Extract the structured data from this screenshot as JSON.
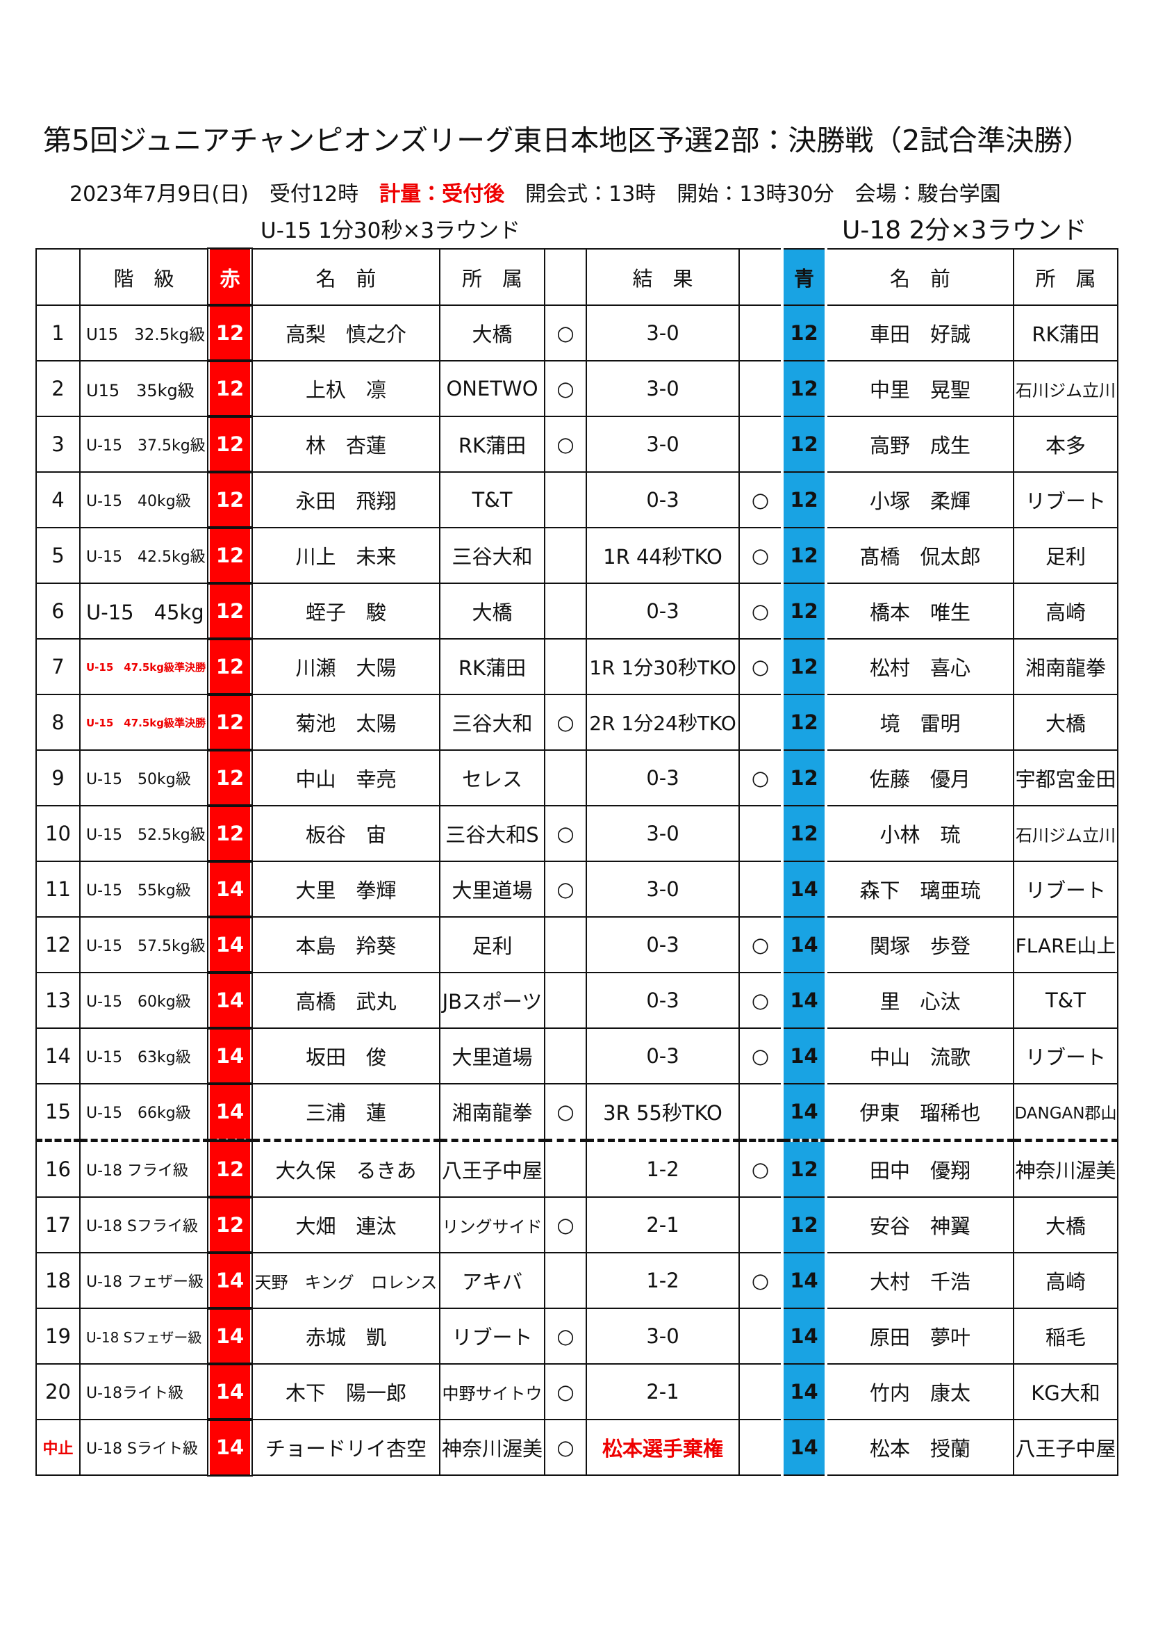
{
  "header": {
    "title": "第5回ジュニアチャンピオンズリーグ東日本地区予選2部：決勝戦（2試合準決勝）",
    "info_left": "2023年7月9日(日)　受付12時",
    "info_weigh": "計量：受付後",
    "info_right": "開会式：13時　開始：13時30分　会場：駿台学園",
    "rule_u15": "U-15 1分30秒×3ラウンド",
    "rule_u18": "U-18 2分×3ラウンド"
  },
  "table": {
    "columns": {
      "class": "階　級",
      "red": "赤",
      "red_name": "名　前",
      "red_team": "所　属",
      "result": "結　果",
      "blue": "青",
      "blue_name": "名　前",
      "blue_team": "所　属"
    },
    "rows": [
      {
        "no": 1,
        "class": "U15　32.5kg級",
        "red_grade": 12,
        "red_name": "高梨　慎之介",
        "red_team": "大橋",
        "red_win": "○",
        "result": "3-0",
        "blue_grade": 12,
        "blue_name": "車田　好誠",
        "blue_team": "RK蒲田"
      },
      {
        "no": 2,
        "class": "U15　35kg級",
        "red_grade": 12,
        "red_name": "上杁　凛",
        "red_team": "ONETWO",
        "red_win": "○",
        "result": "3-0",
        "blue_grade": 12,
        "blue_name": "中里　晃聖",
        "blue_team": "石川ジム立川"
      },
      {
        "no": 3,
        "class": "U-15　37.5kg級",
        "red_grade": 12,
        "red_name": "林　杏蓮",
        "red_team": "RK蒲田",
        "red_win": "○",
        "result": "3-0",
        "blue_grade": 12,
        "blue_name": "高野　成生",
        "blue_team": "本多"
      },
      {
        "no": 4,
        "class": "U-15　40kg級",
        "red_grade": 12,
        "red_name": "永田　飛翔",
        "red_team": "T&T",
        "result": "0-3",
        "blue_win": "○",
        "blue_grade": 12,
        "blue_name": "小塚　柔輝",
        "blue_team": "リブート"
      },
      {
        "no": 5,
        "class": "U-15　42.5kg級",
        "red_grade": 12,
        "red_name": "川上　未来",
        "red_team": "三谷大和",
        "result": "1R 44秒TKO",
        "blue_win": "○",
        "blue_grade": 12,
        "blue_name": "髙橋　侃太郎",
        "blue_team": "足利"
      },
      {
        "no": 6,
        "class": "U-15　45kg",
        "red_grade": 12,
        "red_name": "蛭子　駿",
        "red_team": "大橋",
        "result": "0-3",
        "blue_win": "○",
        "blue_grade": 12,
        "blue_name": "橋本　唯生",
        "blue_team": "高崎"
      },
      {
        "no": 7,
        "class": "U-15　47.5kg級準決勝",
        "red_grade": 12,
        "red_name": "川瀬　大陽",
        "red_team": "RK蒲田",
        "result": "1R 1分30秒TKO",
        "blue_win": "○",
        "blue_grade": 12,
        "blue_name": "松村　喜心",
        "blue_team": "湘南龍拳"
      },
      {
        "no": 8,
        "class": "U-15　47.5kg級準決勝",
        "red_grade": 12,
        "red_name": "菊池　太陽",
        "red_team": "三谷大和",
        "red_win": "○",
        "result": "2R 1分24秒TKO",
        "blue_grade": 12,
        "blue_name": "境　雷明",
        "blue_team": "大橋"
      },
      {
        "no": 9,
        "class": "U-15　50kg級",
        "red_grade": 12,
        "red_name": "中山　幸亮",
        "red_team": "セレス",
        "result": "0-3",
        "blue_win": "○",
        "blue_grade": 12,
        "blue_name": "佐藤　優月",
        "blue_team": "宇都宮金田"
      },
      {
        "no": 10,
        "class": "U-15　52.5kg級",
        "red_grade": 12,
        "red_name": "板谷　宙",
        "red_team": "三谷大和S",
        "red_win": "○",
        "result": "3-0",
        "blue_grade": 12,
        "blue_name": "小林　琉",
        "blue_team": "石川ジム立川"
      },
      {
        "no": 11,
        "class": "U-15　55kg級",
        "red_grade": 14,
        "red_name": "大里　拳輝",
        "red_team": "大里道場",
        "red_win": "○",
        "result": "3-0",
        "blue_grade": 14,
        "blue_name": "森下　璃亜琉",
        "blue_team": "リブート"
      },
      {
        "no": 12,
        "class": "U-15　57.5kg級",
        "red_grade": 14,
        "red_name": "本島　羚葵",
        "red_team": "足利",
        "result": "0-3",
        "blue_win": "○",
        "blue_grade": 14,
        "blue_name": "関塚　歩登",
        "blue_team": "FLARE山上"
      },
      {
        "no": 13,
        "class": "U-15　60kg級",
        "red_grade": 14,
        "red_name": "高橋　武丸",
        "red_team": "JBスポーツ",
        "result": "0-3",
        "blue_win": "○",
        "blue_grade": 14,
        "blue_name": "里　心汰",
        "blue_team": "T&T"
      },
      {
        "no": 14,
        "class": "U-15　63kg級",
        "red_grade": 14,
        "red_name": "坂田　俊",
        "red_team": "大里道場",
        "result": "0-3",
        "blue_win": "○",
        "blue_grade": 14,
        "blue_name": "中山　流歌",
        "blue_team": "リブート"
      },
      {
        "no": 15,
        "class": "U-15　66kg級",
        "red_grade": 14,
        "red_name": "三浦　蓮",
        "red_team": "湘南龍拳",
        "red_win": "○",
        "result": "3R 55秒TKO",
        "blue_grade": 14,
        "blue_name": "伊東　瑠稀也",
        "blue_team": "DANGAN郡山"
      },
      {
        "no": 16,
        "class": "U-18 フライ級",
        "red_grade": 12,
        "red_name": "大久保　るきあ",
        "red_team": "八王子中屋",
        "result": "1-2",
        "blue_win": "○",
        "blue_grade": 12,
        "blue_name": "田中　優翔",
        "blue_team": "神奈川渥美"
      },
      {
        "no": 17,
        "class": "U-18 Sフライ級",
        "red_grade": 12,
        "red_name": "大畑　連汰",
        "red_team": "リングサイド",
        "red_win": "○",
        "result": "2-1",
        "blue_grade": 12,
        "blue_name": "安谷　神翼",
        "blue_team": "大橋"
      },
      {
        "no": 18,
        "class": "U-18 フェザー級",
        "red_grade": 14,
        "red_name": "天野　キング　ロレンス",
        "red_team": "アキバ",
        "result": "1-2",
        "blue_win": "○",
        "blue_grade": 14,
        "blue_name": "大村　千浩",
        "blue_team": "高崎"
      },
      {
        "no": 19,
        "class": "U-18 Sフェザー級",
        "red_grade": 14,
        "red_name": "赤城　凱",
        "red_team": "リブート",
        "red_win": "○",
        "result": "3-0",
        "blue_grade": 14,
        "blue_name": "原田　夢叶",
        "blue_team": "稲毛"
      },
      {
        "no": 20,
        "class": "U-18ライト級",
        "red_grade": 14,
        "red_name": "木下　陽一郎",
        "red_team": "中野サイトウ",
        "red_win": "○",
        "result": "2-1",
        "blue_grade": 14,
        "blue_name": "竹内　康太",
        "blue_team": "KG大和"
      },
      {
        "no": "中止",
        "class": "U-18 Sライト級",
        "red_grade": 14,
        "red_name": "チョードリイ杏空",
        "red_team": "神奈川渥美",
        "red_win": "○",
        "result": "松本選手棄権",
        "blue_grade": 14,
        "blue_name": "松本　授蘭",
        "blue_team": "八王子中屋"
      }
    ]
  }
}
